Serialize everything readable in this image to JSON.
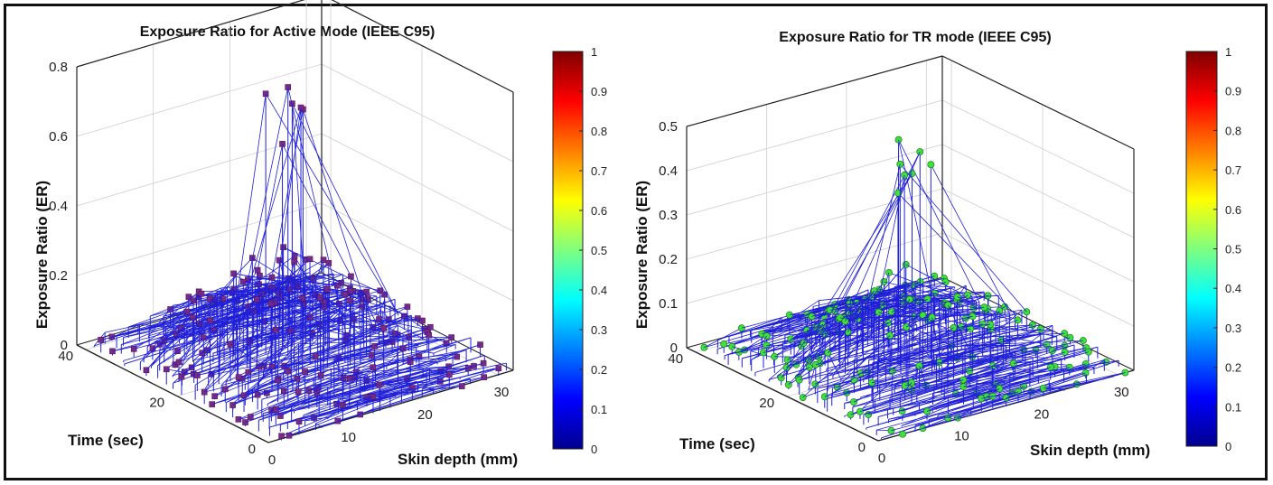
{
  "chart_data": [
    {
      "type": "scatter",
      "subtype": "3d-stem",
      "title": "Exposure Ratio for Active Mode (IEEE C95)",
      "xlabel": "Skin depth (mm)",
      "ylabel": "Time (sec)",
      "zlabel": "Exposure Ratio (ER)",
      "x_ticks": [
        "0",
        "10",
        "20",
        "30"
      ],
      "y_ticks": [
        "0",
        "20",
        "40"
      ],
      "z_ticks": [
        "0",
        "0.2",
        "0.4",
        "0.6",
        "0.8"
      ],
      "xlim": [
        0,
        32
      ],
      "ylim": [
        0,
        42
      ],
      "zlim": [
        0,
        0.8
      ],
      "grid": true,
      "stem_color": "#1f1fd8",
      "marker": "square",
      "marker_color": "#7b2b86",
      "peak": {
        "x_range": [
          14,
          18
        ],
        "y_range": [
          20,
          24
        ],
        "max": 0.78
      },
      "colorbar": {
        "colormap": "jet",
        "ticks": [
          "0",
          "0.1",
          "0.2",
          "0.3",
          "0.4",
          "0.5",
          "0.6",
          "0.7",
          "0.8",
          "0.9",
          "1"
        ],
        "range": [
          0,
          1
        ]
      }
    },
    {
      "type": "scatter",
      "subtype": "3d-stem",
      "title": "Exposure Ratio for TR mode (IEEE C95)",
      "xlabel": "Skin depth (mm)",
      "ylabel": "Time (sec)",
      "zlabel": "Exposure Ratio (ER)",
      "x_ticks": [
        "0",
        "10",
        "20",
        "30"
      ],
      "y_ticks": [
        "0",
        "20",
        "40"
      ],
      "z_ticks": [
        "0",
        "0.1",
        "0.2",
        "0.3",
        "0.4",
        "0.5"
      ],
      "xlim": [
        0,
        32
      ],
      "ylim": [
        0,
        42
      ],
      "zlim": [
        0,
        0.5
      ],
      "grid": true,
      "stem_color": "#1f1fd8",
      "marker": "circle",
      "marker_color": "#3ee23e",
      "peak": {
        "x_range": [
          14,
          18
        ],
        "y_range": [
          20,
          24
        ],
        "max": 0.48
      },
      "colorbar": {
        "colormap": "jet",
        "ticks": [
          "0",
          "0.1",
          "0.2",
          "0.3",
          "0.4",
          "0.5",
          "0.6",
          "0.7",
          "0.8",
          "0.9",
          "1"
        ],
        "range": [
          0,
          1
        ]
      }
    }
  ]
}
